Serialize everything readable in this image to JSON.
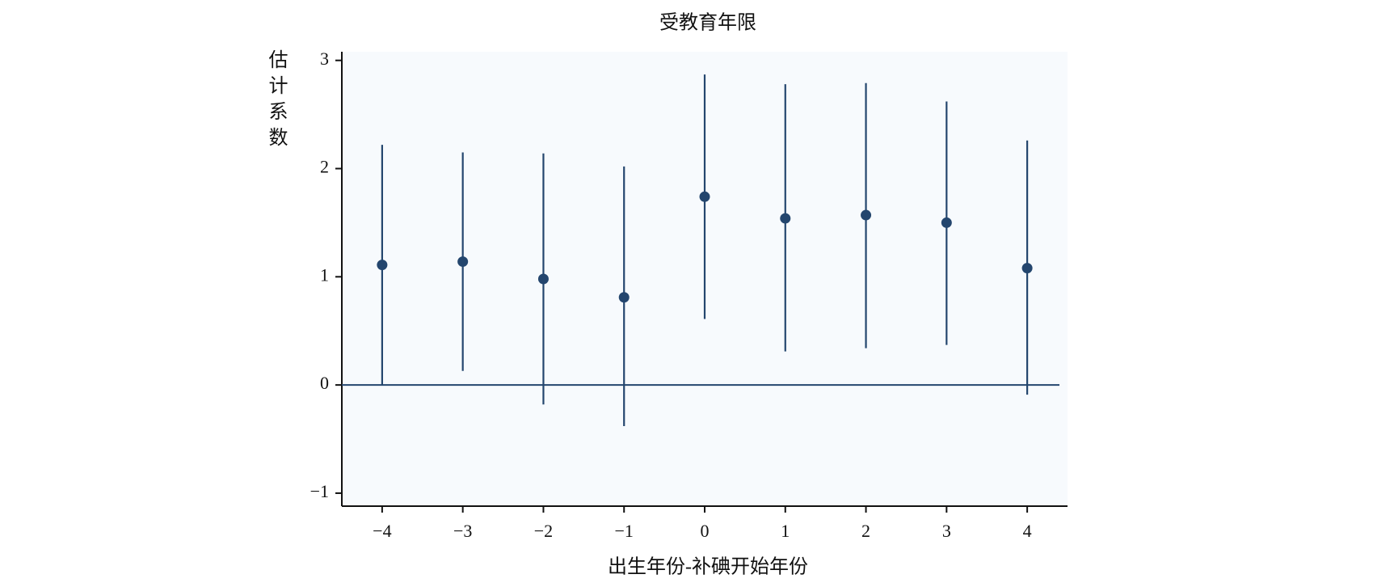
{
  "chart_data": {
    "type": "errorbar",
    "title": "受教育年限",
    "x_label": "出生年份-补碘开始年份",
    "y_label": "估计系数",
    "x": [
      -4,
      -3,
      -2,
      -1,
      0,
      1,
      2,
      3,
      4
    ],
    "series": [
      {
        "color": "#24466e",
        "values": [
          1.11,
          1.14,
          0.98,
          0.81,
          1.74,
          1.54,
          1.57,
          1.5,
          1.08
        ],
        "lower": [
          0.0,
          0.13,
          -0.18,
          -0.38,
          0.61,
          0.31,
          0.34,
          0.37,
          -0.09
        ],
        "upper": [
          2.22,
          2.15,
          2.14,
          2.02,
          2.87,
          2.78,
          2.79,
          2.62,
          2.26
        ]
      }
    ],
    "hline": 0,
    "xlim": [
      -4.5,
      4.5
    ],
    "ylim": [
      -1.12,
      3.08
    ],
    "xticks": [
      {
        "value": -4,
        "label": "−4"
      },
      {
        "value": -3,
        "label": "−3"
      },
      {
        "value": -2,
        "label": "−2"
      },
      {
        "value": -1,
        "label": "−1"
      },
      0,
      1,
      2,
      3,
      4
    ],
    "yticks": [
      {
        "value": -1,
        "label": "−1"
      },
      0,
      1,
      2,
      3
    ]
  }
}
